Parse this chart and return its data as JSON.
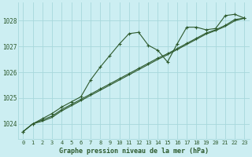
{
  "title": "Graphe pression niveau de la mer (hPa)",
  "xlim": [
    -0.5,
    23.5
  ],
  "ylim": [
    1023.4,
    1028.7
  ],
  "yticks": [
    1024,
    1025,
    1026,
    1027,
    1028
  ],
  "xticks": [
    0,
    1,
    2,
    3,
    4,
    5,
    6,
    7,
    8,
    9,
    10,
    11,
    12,
    13,
    14,
    15,
    16,
    17,
    18,
    19,
    20,
    21,
    22,
    23
  ],
  "bg_color": "#cceef2",
  "grid_color": "#a8d8dc",
  "line_color": "#2d5a2d",
  "series_wiggly": [
    [
      0,
      1023.7
    ],
    [
      1,
      1024.0
    ],
    [
      2,
      1024.2
    ],
    [
      3,
      1024.4
    ],
    [
      4,
      1024.65
    ],
    [
      5,
      1024.85
    ],
    [
      6,
      1025.05
    ],
    [
      7,
      1025.7
    ],
    [
      8,
      1026.2
    ],
    [
      9,
      1026.65
    ],
    [
      10,
      1027.1
    ],
    [
      11,
      1027.5
    ],
    [
      12,
      1027.55
    ],
    [
      13,
      1027.05
    ],
    [
      14,
      1026.85
    ],
    [
      15,
      1026.4
    ],
    [
      16,
      1027.1
    ],
    [
      17,
      1027.75
    ],
    [
      18,
      1027.75
    ],
    [
      19,
      1027.65
    ],
    [
      20,
      1027.7
    ],
    [
      21,
      1028.2
    ],
    [
      22,
      1028.25
    ],
    [
      23,
      1028.1
    ]
  ],
  "series_trend1": [
    [
      0,
      1023.7
    ],
    [
      1,
      1024.0
    ],
    [
      2,
      1024.15
    ],
    [
      3,
      1024.3
    ],
    [
      4,
      1024.55
    ],
    [
      5,
      1024.75
    ],
    [
      6,
      1024.95
    ],
    [
      7,
      1025.15
    ],
    [
      8,
      1025.35
    ],
    [
      9,
      1025.55
    ],
    [
      10,
      1025.75
    ],
    [
      11,
      1025.95
    ],
    [
      12,
      1026.15
    ],
    [
      13,
      1026.35
    ],
    [
      14,
      1026.55
    ],
    [
      15,
      1026.72
    ],
    [
      16,
      1026.92
    ],
    [
      17,
      1027.12
    ],
    [
      18,
      1027.32
    ],
    [
      19,
      1027.52
    ],
    [
      20,
      1027.65
    ],
    [
      21,
      1027.82
    ],
    [
      22,
      1028.05
    ],
    [
      23,
      1028.1
    ]
  ],
  "series_trend2": [
    [
      0,
      1023.7
    ],
    [
      1,
      1024.0
    ],
    [
      2,
      1024.1
    ],
    [
      3,
      1024.25
    ],
    [
      4,
      1024.5
    ],
    [
      5,
      1024.7
    ],
    [
      6,
      1024.9
    ],
    [
      7,
      1025.1
    ],
    [
      8,
      1025.3
    ],
    [
      9,
      1025.5
    ],
    [
      10,
      1025.7
    ],
    [
      11,
      1025.9
    ],
    [
      12,
      1026.1
    ],
    [
      13,
      1026.3
    ],
    [
      14,
      1026.5
    ],
    [
      15,
      1026.68
    ],
    [
      16,
      1026.88
    ],
    [
      17,
      1027.08
    ],
    [
      18,
      1027.28
    ],
    [
      19,
      1027.48
    ],
    [
      20,
      1027.62
    ],
    [
      21,
      1027.78
    ],
    [
      22,
      1028.0
    ],
    [
      23,
      1028.1
    ]
  ]
}
